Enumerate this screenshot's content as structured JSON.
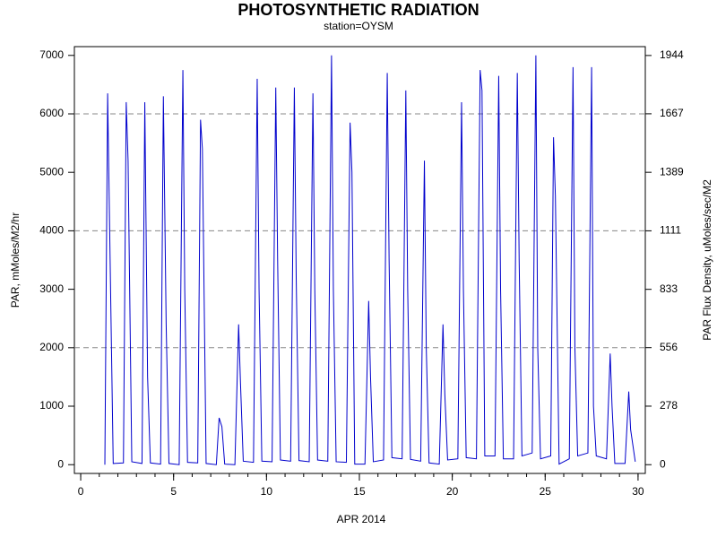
{
  "chart_data": {
    "type": "line",
    "title": "PHOTOSYNTHETIC RADIATION",
    "subtitle": "station=OYSM",
    "x_label": "APR 2014",
    "y_label": "PAR, mMoles/M2/hr",
    "y2_label": "PAR Flux Density, uMoles/sec/M2",
    "xlim": [
      -0.34,
      30.39
    ],
    "xticks": [
      0,
      5,
      10,
      15,
      20,
      25,
      30
    ],
    "xminor_step": 1,
    "ylim": [
      -150,
      7150
    ],
    "yticks": [
      0,
      1000,
      2000,
      3000,
      4000,
      5000,
      6000,
      7000
    ],
    "y2lim": [
      -41.67,
      1986.1
    ],
    "y2ticks": [
      0,
      278,
      556,
      833,
      1111,
      1389,
      1667,
      1944
    ],
    "grid_lines": [
      2000,
      4000,
      6000
    ],
    "series": [
      {
        "name": "PAR",
        "color": "#0000cc",
        "x": [
          1.3,
          1.45,
          1.55,
          1.75,
          2.3,
          2.45,
          2.55,
          2.75,
          3.3,
          3.45,
          3.6,
          3.75,
          4.3,
          4.45,
          4.6,
          4.75,
          5.3,
          5.5,
          5.6,
          5.75,
          6.3,
          6.45,
          6.55,
          6.75,
          7.3,
          7.45,
          7.6,
          7.75,
          8.3,
          8.5,
          8.6,
          8.75,
          9.3,
          9.5,
          9.6,
          9.75,
          10.3,
          10.5,
          10.6,
          10.75,
          11.3,
          11.5,
          11.6,
          11.75,
          12.3,
          12.5,
          12.6,
          12.75,
          13.3,
          13.5,
          13.6,
          13.75,
          14.3,
          14.5,
          14.6,
          14.75,
          15.3,
          15.5,
          15.6,
          15.75,
          16.3,
          16.5,
          16.6,
          16.75,
          17.3,
          17.5,
          17.6,
          17.75,
          18.3,
          18.5,
          18.6,
          18.75,
          19.3,
          19.5,
          19.6,
          19.75,
          20.3,
          20.5,
          20.6,
          20.75,
          21.3,
          21.5,
          21.6,
          21.75,
          22.3,
          22.5,
          22.6,
          22.75,
          23.3,
          23.5,
          23.6,
          23.75,
          24.3,
          24.5,
          24.6,
          24.75,
          25.3,
          25.45,
          25.55,
          25.75,
          26.3,
          26.5,
          26.6,
          26.75,
          27.3,
          27.5,
          27.6,
          27.75,
          28.3,
          28.5,
          28.6,
          28.75,
          29.3,
          29.5,
          29.6,
          29.85
        ],
        "values": [
          0,
          6350,
          4200,
          20,
          30,
          6200,
          5200,
          50,
          20,
          6200,
          1500,
          30,
          10,
          6300,
          2400,
          20,
          0,
          6750,
          3000,
          40,
          30,
          5900,
          5400,
          20,
          0,
          800,
          650,
          10,
          0,
          2400,
          1400,
          60,
          40,
          6600,
          3000,
          60,
          50,
          6450,
          3500,
          80,
          60,
          6450,
          3200,
          70,
          50,
          6350,
          3000,
          80,
          60,
          7000,
          3000,
          50,
          40,
          5850,
          5000,
          10,
          10,
          2800,
          1500,
          50,
          80,
          6700,
          3500,
          120,
          100,
          6400,
          3000,
          90,
          60,
          5200,
          2000,
          30,
          10,
          2400,
          1200,
          80,
          100,
          6200,
          3000,
          120,
          100,
          6750,
          6400,
          150,
          150,
          6650,
          3000,
          100,
          100,
          6700,
          3500,
          150,
          200,
          7000,
          2000,
          100,
          150,
          5600,
          4600,
          10,
          100,
          6800,
          2000,
          150,
          200,
          6800,
          1000,
          150,
          100,
          1900,
          1000,
          20,
          20,
          1250,
          600,
          50
        ]
      }
    ]
  }
}
